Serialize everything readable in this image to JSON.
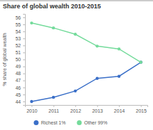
{
  "chart_data": {
    "type": "line",
    "title": "Share of global wealth 2010-2015",
    "y_label": "% share of global wealth",
    "x": [
      2010,
      2011,
      2012,
      2013,
      2014,
      2015
    ],
    "series": [
      {
        "name": "Richest 1%",
        "color": "#3a6fc8",
        "values": [
          44.0,
          44.6,
          45.5,
          47.3,
          47.6,
          49.6
        ]
      },
      {
        "name": "Other 99%",
        "color": "#74db9b",
        "values": [
          55.2,
          54.5,
          53.6,
          51.9,
          51.5,
          49.6
        ]
      }
    ],
    "xlim": [
      2009.7,
      2015.3
    ],
    "xticks": [
      2010,
      2011,
      2012,
      2013,
      2014,
      2015
    ],
    "ylim": [
      43.5,
      56.5
    ],
    "yticks": [
      44,
      45,
      46,
      47,
      48,
      49,
      50,
      51,
      52,
      53,
      54,
      55,
      56
    ],
    "grid": false,
    "legend": "bottom",
    "marker": "circle"
  }
}
